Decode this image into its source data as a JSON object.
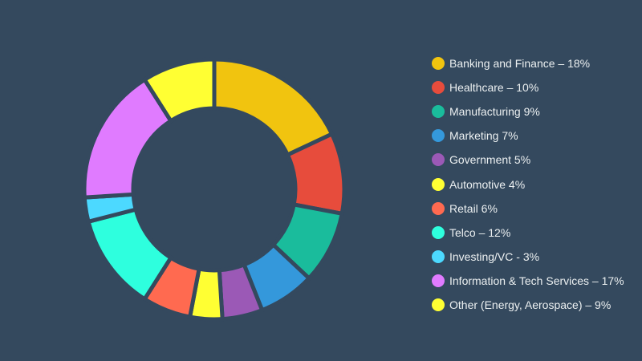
{
  "chart_data": {
    "type": "pie",
    "donut": true,
    "legend_position": "right",
    "series": [
      {
        "label": "Banking and Finance – 18%",
        "value": 18,
        "color": "#f1c40f"
      },
      {
        "label": "Healthcare – 10%",
        "value": 10,
        "color": "#e74c3c"
      },
      {
        "label": "Manufacturing 9%",
        "value": 9,
        "color": "#1abc9c"
      },
      {
        "label": "Marketing 7%",
        "value": 7,
        "color": "#3498db"
      },
      {
        "label": "Government 5%",
        "value": 5,
        "color": "#9b59b6"
      },
      {
        "label": "Automotive 4%",
        "value": 4,
        "color": "#ffff33"
      },
      {
        "label": "Retail 6%",
        "value": 6,
        "color": "#ff6a50"
      },
      {
        "label": "Telco – 12%",
        "value": 12,
        "color": "#2effde"
      },
      {
        "label": "Investing/VC - 3%",
        "value": 3,
        "color": "#4cd9ff"
      },
      {
        "label": "Information & Tech Services – 17%",
        "value": 17,
        "color": "#e07bff"
      },
      {
        "label": "Other (Energy, Aerospace) – 9%",
        "value": 9,
        "color": "#ffff33"
      }
    ]
  }
}
